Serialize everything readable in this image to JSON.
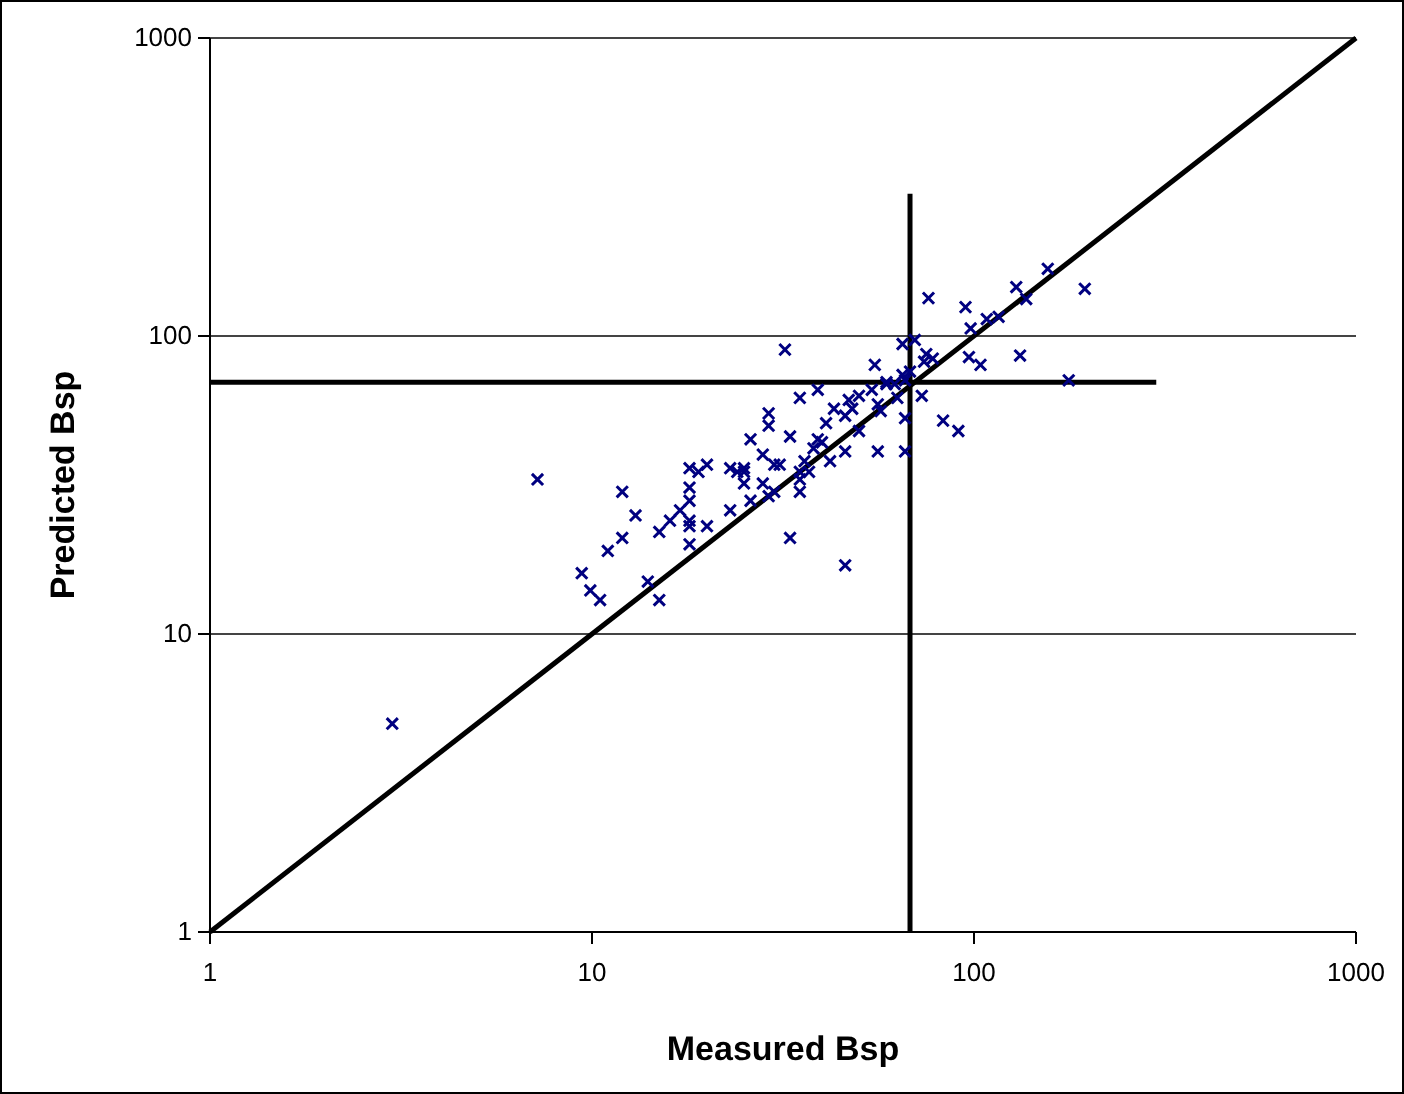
{
  "chart_data": {
    "type": "scatter",
    "xlabel": "Measured Bsp",
    "ylabel": "Predicted Bsp",
    "log": "xy",
    "xlim": [
      1,
      1000
    ],
    "ylim": [
      1,
      1000
    ],
    "xticks": [
      1,
      10,
      100,
      1000
    ],
    "yticks": [
      1,
      10,
      100,
      1000
    ],
    "grid": "y",
    "series": [
      {
        "color": "#000080",
        "marker": "cross",
        "x": [
          7.2,
          26,
          12,
          13,
          12,
          11,
          9.4,
          9.9,
          10.5,
          14,
          15,
          15,
          16,
          17,
          18,
          18,
          18,
          19,
          20,
          18,
          18,
          20,
          18,
          23,
          24,
          25,
          25,
          25,
          23,
          26,
          32,
          76,
          95,
          98,
          108,
          116,
          129,
          137,
          156,
          195,
          65,
          70,
          75,
          74,
          78,
          97,
          104,
          132,
          177,
          55,
          59,
          62,
          68,
          66,
          63,
          73,
          66,
          83,
          91,
          66,
          56,
          46,
          42,
          35,
          39,
          29,
          29,
          33,
          41,
          43,
          47,
          50,
          54,
          56,
          57,
          48,
          46,
          50,
          39,
          40,
          38,
          36,
          37,
          28,
          30,
          31,
          35,
          35,
          35,
          28,
          29,
          30,
          33,
          46,
          65,
          59,
          3.0
        ],
        "values": [
          33,
          45,
          30,
          25,
          21,
          19,
          16,
          14,
          13,
          15,
          13,
          22,
          24,
          26,
          28,
          31,
          36,
          35,
          37,
          23,
          24,
          23,
          20,
          36,
          35,
          36,
          35,
          32,
          26,
          28,
          90,
          134,
          125,
          106,
          114,
          116,
          146,
          133,
          168,
          144,
          94,
          97,
          87,
          82,
          84,
          85,
          80,
          86,
          71,
          80,
          69,
          69,
          76,
          71,
          62,
          63,
          53,
          52,
          48,
          41,
          41,
          41,
          38,
          62,
          66,
          55,
          50,
          46,
          51,
          57,
          61,
          63,
          66,
          59,
          56,
          57,
          54,
          48,
          45,
          44,
          42,
          38,
          35,
          40,
          37,
          37,
          35,
          33,
          30,
          32,
          29,
          30,
          21,
          17,
          74,
          70,
          5.0
        ]
      },
      {
        "type": "line",
        "color": "#000000",
        "x": [
          1,
          1000
        ],
        "values": [
          1,
          1000
        ]
      },
      {
        "type": "line",
        "color": "#000000",
        "x": [
          68,
          68
        ],
        "values": [
          1,
          300
        ]
      },
      {
        "type": "line",
        "color": "#000000",
        "x": [
          1,
          300
        ],
        "values": [
          70,
          70
        ]
      }
    ]
  }
}
